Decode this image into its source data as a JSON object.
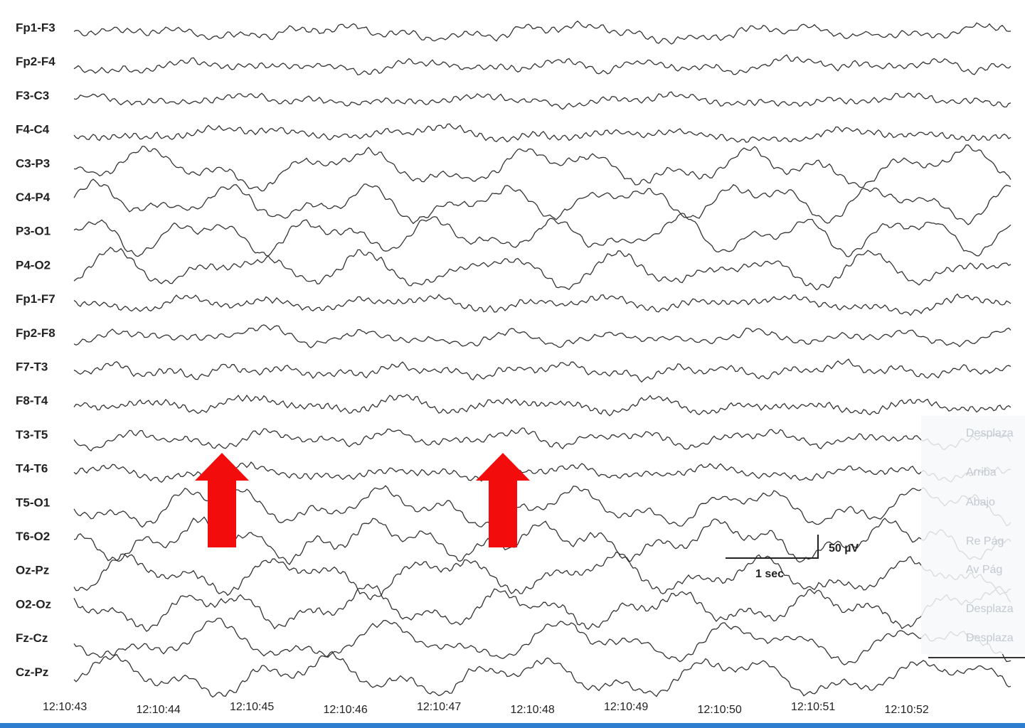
{
  "channels": [
    "Fp1-F3",
    "Fp2-F4",
    "F3-C3",
    "F4-C4",
    "C3-P3",
    "C4-P4",
    "P3-O1",
    "P4-O2",
    "Fp1-F7",
    "Fp2-F8",
    "F7-T3",
    "F8-T4",
    "T3-T5",
    "T4-T6",
    "T5-O1",
    "T6-O2",
    "Oz-Pz",
    "O2-Oz",
    "Fz-Cz",
    "Cz-Pz"
  ],
  "time_labels": [
    "12:10:43",
    "12:10:44",
    "12:10:45",
    "12:10:46",
    "12:10:47",
    "12:10:48",
    "12:10:49",
    "12:10:50",
    "12:10:51",
    "12:10:52"
  ],
  "scale_bar": {
    "amplitude": "50 µV",
    "duration": "1 sec"
  },
  "context_menu": [
    "Desplaza",
    "Arriba",
    "Abajo",
    "Re Pág",
    "Av Pág",
    "Desplaza",
    "Desplaza"
  ]
}
